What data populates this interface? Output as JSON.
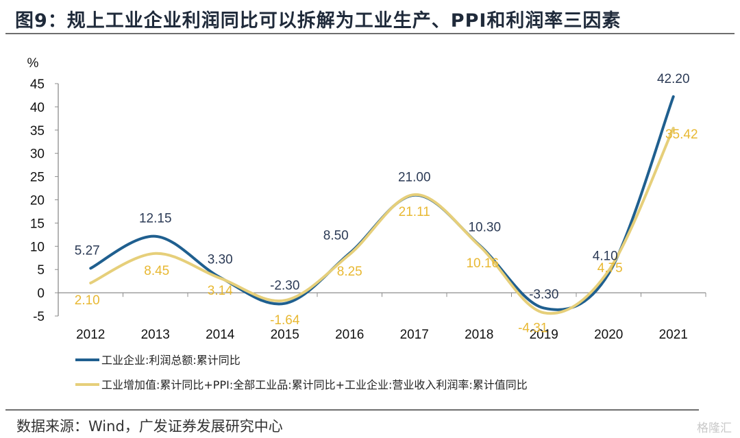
{
  "title": "图9：规上工业企业利润同比可以拆解为工业生产、PPI和利润率三因素",
  "source": "数据来源：Wind，广发证券发展研究中心",
  "watermark": "格隆汇",
  "chart_data": {
    "type": "line",
    "title": "规上工业企业利润同比可以拆解为工业生产、PPI和利润率三因素",
    "ylabel": "%",
    "xlabel": "",
    "ylim": [
      -5,
      45
    ],
    "yticks": [
      -5,
      0,
      5,
      10,
      15,
      20,
      25,
      30,
      35,
      40,
      45
    ],
    "categories": [
      "2012",
      "2013",
      "2014",
      "2015",
      "2016",
      "2017",
      "2018",
      "2019",
      "2020",
      "2021"
    ],
    "grid": false,
    "smooth": true,
    "legend_position": "bottom",
    "series": [
      {
        "name": "工业企业:利润总额:累计同比",
        "color": "#1f5f8f",
        "values": [
          5.27,
          12.15,
          3.3,
          -2.3,
          8.5,
          21.0,
          10.3,
          -3.3,
          4.1,
          42.2
        ],
        "labels": [
          "5.27",
          "12.15",
          "3.30",
          "-2.30",
          "8.50",
          "21.00",
          "10.30",
          "-3.30",
          "4.10",
          "42.20"
        ],
        "label_color": "#2b3a55"
      },
      {
        "name": "工业增加值:累计同比+PPI:全部工业品:累计同比+工业企业:营业收入利润率:累计值同比",
        "color": "#e6cf7a",
        "values": [
          2.1,
          8.45,
          3.14,
          -1.64,
          8.25,
          21.11,
          10.16,
          -4.31,
          4.75,
          35.42
        ],
        "labels": [
          "2.10",
          "8.45",
          "3.14",
          "-1.64",
          "8.25",
          "21.11",
          "10.16",
          "-4.31",
          "4.75",
          "35.42"
        ],
        "label_color": "#e8b832"
      }
    ]
  }
}
